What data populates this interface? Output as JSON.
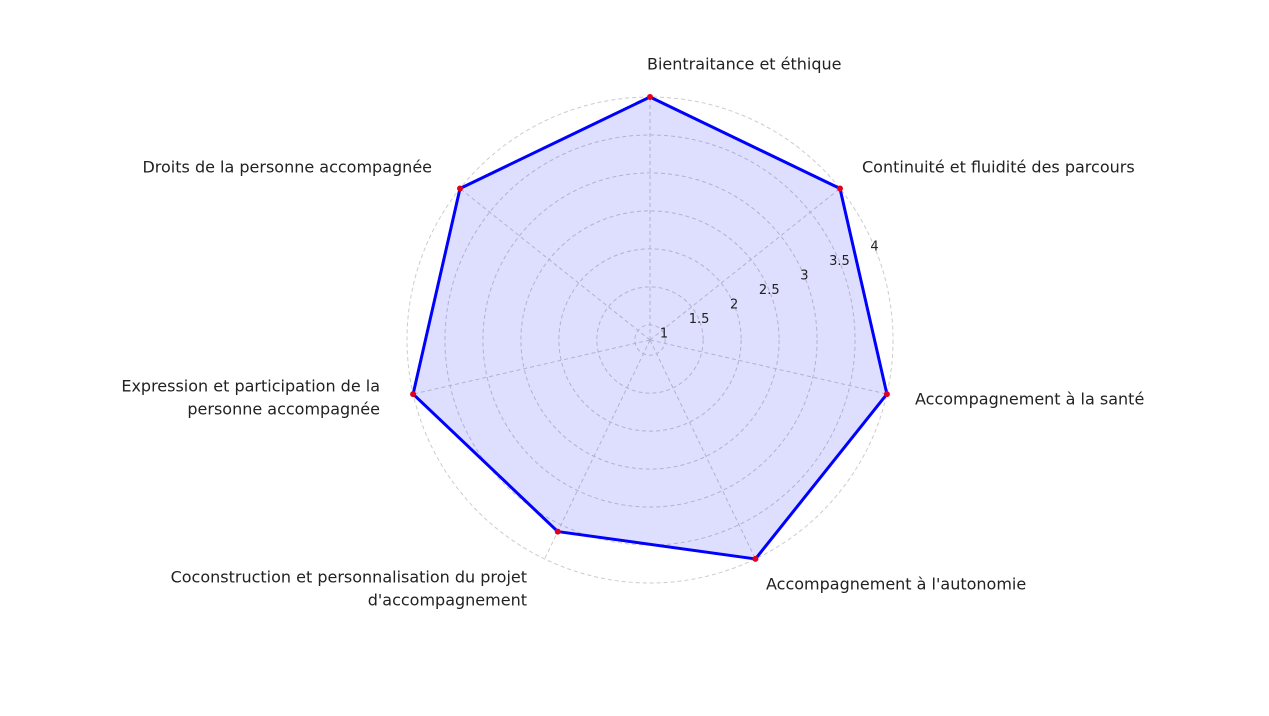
{
  "chart_data": {
    "type": "radar",
    "categories": [
      "Bientraitance et éthique",
      "Continuité et fluidité des parcours",
      "Accompagnement à la santé",
      "Accompagnement à l'autonomie",
      "Coconstruction et personnalisation du projet\nd'accompagnement",
      "Expression et participation de la\npersonne accompagnée",
      "Droits de la personne accompagnée"
    ],
    "values": [
      4,
      4,
      4,
      4,
      3.6,
      4,
      4
    ],
    "color": "#0000ff",
    "marker_color": "#e0001b",
    "ylim": [
      0.8,
      4
    ],
    "yticks": [
      1,
      1.5,
      2,
      2.5,
      3,
      3.5,
      4
    ],
    "grid": true
  }
}
